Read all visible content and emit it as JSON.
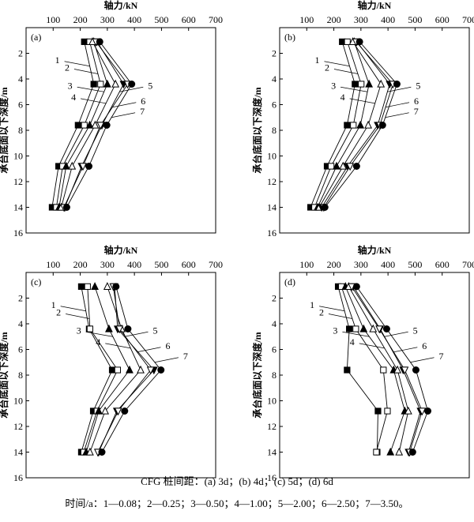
{
  "chart_data": [
    {
      "type": "line",
      "label": "(a)",
      "xlabel": "轴力/kN",
      "ylabel": "承台底面以下深度/m",
      "xlim": [
        0,
        700
      ],
      "xticks": [
        100,
        200,
        300,
        400,
        500,
        600,
        700
      ],
      "ylim": [
        0,
        16
      ],
      "yticks": [
        2,
        4,
        6,
        8,
        10,
        12,
        14,
        16
      ],
      "y": [
        1.1,
        4.4,
        7.6,
        10.8,
        14.0
      ],
      "series": [
        {
          "name": "1",
          "color": "#000000",
          "marker": "square-filled",
          "values": [
            215,
            250,
            192,
            120,
            96
          ]
        },
        {
          "name": "2",
          "color": "#000000",
          "marker": "square-open",
          "values": [
            235,
            275,
            215,
            135,
            112
          ]
        },
        {
          "name": "3",
          "color": "#000000",
          "marker": "triangle-up-filled",
          "values": [
            250,
            300,
            235,
            148,
            122
          ]
        },
        {
          "name": "4",
          "color": "#000000",
          "marker": "triangle-up-open",
          "values": [
            245,
            330,
            255,
            170,
            130
          ]
        },
        {
          "name": "5",
          "color": "#000000",
          "marker": "triangle-down-filled",
          "values": [
            262,
            360,
            280,
            205,
            143
          ]
        },
        {
          "name": "6",
          "color": "#000000",
          "marker": "triangle-down-open",
          "values": [
            258,
            375,
            275,
            210,
            140
          ]
        },
        {
          "name": "7",
          "color": "#000000",
          "marker": "circle-filled",
          "values": [
            272,
            390,
            298,
            232,
            150
          ]
        }
      ]
    },
    {
      "type": "line",
      "label": "(b)",
      "xlabel": "轴力/kN",
      "ylabel": "承台底面以下深度/m",
      "xlim": [
        0,
        700
      ],
      "xticks": [
        100,
        200,
        300,
        400,
        500,
        600,
        700
      ],
      "ylim": [
        0,
        16
      ],
      "yticks": [
        2,
        4,
        6,
        8,
        10,
        12,
        14,
        16
      ],
      "y": [
        1.1,
        4.4,
        7.6,
        10.8,
        14.0
      ],
      "series": [
        {
          "name": "1",
          "color": "#000000",
          "marker": "square-filled",
          "values": [
            231,
            278,
            249,
            175,
            114
          ]
        },
        {
          "name": "2",
          "color": "#000000",
          "marker": "square-open",
          "values": [
            250,
            301,
            272,
            190,
            129
          ]
        },
        {
          "name": "3",
          "color": "#000000",
          "marker": "triangle-up-filled",
          "values": [
            275,
            330,
            298,
            210,
            140
          ]
        },
        {
          "name": "4",
          "color": "#000000",
          "marker": "triangle-up-open",
          "values": [
            270,
            374,
            327,
            234,
            146
          ]
        },
        {
          "name": "5",
          "color": "#000000",
          "marker": "triangle-down-filled",
          "values": [
            285,
            406,
            362,
            251,
            155
          ]
        },
        {
          "name": "6",
          "color": "#000000",
          "marker": "triangle-down-open",
          "values": [
            282,
            418,
            370,
            260,
            163
          ]
        },
        {
          "name": "7",
          "color": "#000000",
          "marker": "circle-filled",
          "values": [
            295,
            433,
            380,
            284,
            167
          ]
        }
      ]
    },
    {
      "type": "line",
      "label": "(c)",
      "xlabel": "轴力/kN",
      "ylabel": "承台底面以下深度/m",
      "xlim": [
        0,
        700
      ],
      "xticks": [
        100,
        200,
        300,
        400,
        500,
        600,
        700
      ],
      "ylim": [
        0,
        16
      ],
      "yticks": [
        2,
        4,
        6,
        8,
        10,
        12,
        14,
        16
      ],
      "y": [
        1.1,
        4.4,
        7.6,
        10.8,
        14.0
      ],
      "series": [
        {
          "name": "1",
          "color": "#000000",
          "marker": "square-filled",
          "values": [
            204,
            233,
            318,
            248,
            204
          ]
        },
        {
          "name": "2",
          "color": "#000000",
          "marker": "square-open",
          "values": [
            227,
            236,
            338,
            262,
            213
          ]
        },
        {
          "name": "3",
          "color": "#000000",
          "marker": "triangle-up-filled",
          "values": [
            254,
            306,
            382,
            268,
            222
          ]
        },
        {
          "name": "4",
          "color": "#000000",
          "marker": "triangle-up-open",
          "values": [
            300,
            353,
            423,
            292,
            236
          ]
        },
        {
          "name": "5",
          "color": "#000000",
          "marker": "triangle-down-filled",
          "values": [
            327,
            338,
            472,
            335,
            268
          ]
        },
        {
          "name": "6",
          "color": "#000000",
          "marker": "triangle-down-open",
          "values": [
            322,
            345,
            460,
            340,
            265
          ]
        },
        {
          "name": "7",
          "color": "#000000",
          "marker": "circle-filled",
          "values": [
            332,
            376,
            498,
            364,
            280
          ]
        }
      ]
    },
    {
      "type": "line",
      "label": "(d)",
      "xlabel": "轴力/kN",
      "ylabel": "承台底面以下深度/m",
      "xlim": [
        0,
        700
      ],
      "xticks": [
        100,
        200,
        300,
        400,
        500,
        600,
        700
      ],
      "ylim": [
        0,
        16
      ],
      "yticks": [
        2,
        4,
        6,
        8,
        10,
        12,
        14,
        16
      ],
      "y": [
        1.1,
        4.4,
        7.6,
        10.8,
        14.0
      ],
      "series": [
        {
          "name": "1",
          "color": "#000000",
          "marker": "square-filled",
          "values": [
            216,
            257,
            249,
            363,
            360
          ]
        },
        {
          "name": "2",
          "color": "#000000",
          "marker": "square-open",
          "values": [
            228,
            281,
            383,
            398,
            357
          ]
        },
        {
          "name": "3",
          "color": "#000000",
          "marker": "triangle-up-filled",
          "values": [
            243,
            310,
            421,
            462,
            409
          ]
        },
        {
          "name": "4",
          "color": "#000000",
          "marker": "triangle-up-open",
          "values": [
            255,
            345,
            435,
            475,
            441
          ]
        },
        {
          "name": "5",
          "color": "#000000",
          "marker": "triangle-down-filled",
          "values": [
            272,
            371,
            456,
            520,
            476
          ]
        },
        {
          "name": "6",
          "color": "#000000",
          "marker": "triangle-down-open",
          "values": [
            266,
            368,
            462,
            526,
            480
          ]
        },
        {
          "name": "7",
          "color": "#000000",
          "marker": "circle-filled",
          "values": [
            284,
            395,
            503,
            547,
            491
          ]
        }
      ]
    }
  ],
  "caption": "CFG 桩间距：(a) 3d；(b) 4d；(c) 5d；(d) 6d",
  "note": "时间/a：1—0.08；2—0.25；3—0.50；4—1.00；5—2.00；6—2.50；7—3.50。"
}
